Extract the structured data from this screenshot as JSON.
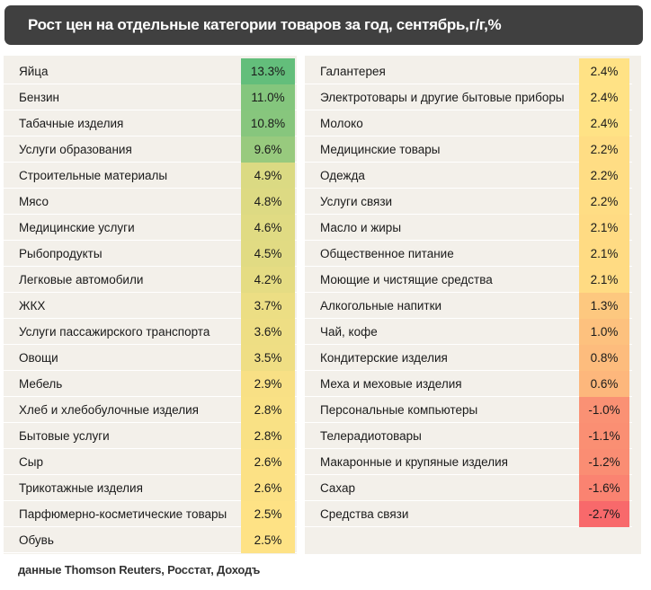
{
  "header": {
    "title": "Рост цен на отдельные категории товаров за год, сентябрь,г/г,%"
  },
  "source": "данные Thomson Reuters, Росстат, Доходъ",
  "colors": {
    "title_bg": "#404040",
    "panel_bg": "#f3f0ea",
    "scale_high": "#63be7b",
    "scale_mid": "#ffe285",
    "scale_low": "#f8696b"
  },
  "chart_data": {
    "type": "table",
    "title": "Рост цен на отдельные категории товаров за год, сентябрь,г/г,%",
    "unit": "%",
    "columns": [
      {
        "rows": [
          {
            "label": "Яйца",
            "value": 13.3,
            "display": "13.3%"
          },
          {
            "label": "Бензин",
            "value": 11.0,
            "display": "11.0%"
          },
          {
            "label": "Табачные изделия",
            "value": 10.8,
            "display": "10.8%"
          },
          {
            "label": "Услуги образования",
            "value": 9.6,
            "display": "9.6%"
          },
          {
            "label": "Строительные материалы",
            "value": 4.9,
            "display": "4.9%"
          },
          {
            "label": "Мясо",
            "value": 4.8,
            "display": "4.8%"
          },
          {
            "label": "Медицинские услуги",
            "value": 4.6,
            "display": "4.6%"
          },
          {
            "label": "Рыбопродукты",
            "value": 4.5,
            "display": "4.5%"
          },
          {
            "label": "Легковые автомобили",
            "value": 4.2,
            "display": "4.2%"
          },
          {
            "label": "ЖКХ",
            "value": 3.7,
            "display": "3.7%"
          },
          {
            "label": "Услуги пассажирского транспорта",
            "value": 3.6,
            "display": "3.6%"
          },
          {
            "label": "Овощи",
            "value": 3.5,
            "display": "3.5%"
          },
          {
            "label": "Мебель",
            "value": 2.9,
            "display": "2.9%"
          },
          {
            "label": "Хлеб и хлебобулочные изделия",
            "value": 2.8,
            "display": "2.8%"
          },
          {
            "label": "Бытовые услуги",
            "value": 2.8,
            "display": "2.8%"
          },
          {
            "label": "Сыр",
            "value": 2.6,
            "display": "2.6%"
          },
          {
            "label": "Трикотажные изделия",
            "value": 2.6,
            "display": "2.6%"
          },
          {
            "label": "Парфюмерно-косметические товары",
            "value": 2.5,
            "display": "2.5%"
          },
          {
            "label": "Обувь",
            "value": 2.5,
            "display": "2.5%"
          }
        ]
      },
      {
        "rows": [
          {
            "label": "Галантерея",
            "value": 2.4,
            "display": "2.4%"
          },
          {
            "label": "Электротовары и другие бытовые приборы",
            "value": 2.4,
            "display": "2.4%"
          },
          {
            "label": "Молоко",
            "value": 2.4,
            "display": "2.4%"
          },
          {
            "label": "Медицинские товары",
            "value": 2.2,
            "display": "2.2%"
          },
          {
            "label": "Одежда",
            "value": 2.2,
            "display": "2.2%"
          },
          {
            "label": "Услуги связи",
            "value": 2.2,
            "display": "2.2%"
          },
          {
            "label": "Масло и жиры",
            "value": 2.1,
            "display": "2.1%"
          },
          {
            "label": "Общественное питание",
            "value": 2.1,
            "display": "2.1%"
          },
          {
            "label": "Моющие и чистящие средства",
            "value": 2.1,
            "display": "2.1%"
          },
          {
            "label": "Алкогольные напитки",
            "value": 1.3,
            "display": "1.3%"
          },
          {
            "label": "Чай, кофе",
            "value": 1.0,
            "display": "1.0%"
          },
          {
            "label": "Кондитерские изделия",
            "value": 0.8,
            "display": "0.8%"
          },
          {
            "label": "Меха и меховые изделия",
            "value": 0.6,
            "display": "0.6%"
          },
          {
            "label": "Персональные компьютеры",
            "value": -1.0,
            "display": "-1.0%"
          },
          {
            "label": "Телерадиотовары",
            "value": -1.1,
            "display": "-1.1%"
          },
          {
            "label": "Макаронные и крупяные изделия",
            "value": -1.2,
            "display": "-1.2%"
          },
          {
            "label": "Сахар",
            "value": -1.6,
            "display": "-1.6%"
          },
          {
            "label": "Средства связи",
            "value": -2.7,
            "display": "-2.7%"
          }
        ]
      }
    ],
    "color_scale": {
      "min": -2.7,
      "mid": 2.4,
      "max": 13.3
    }
  }
}
